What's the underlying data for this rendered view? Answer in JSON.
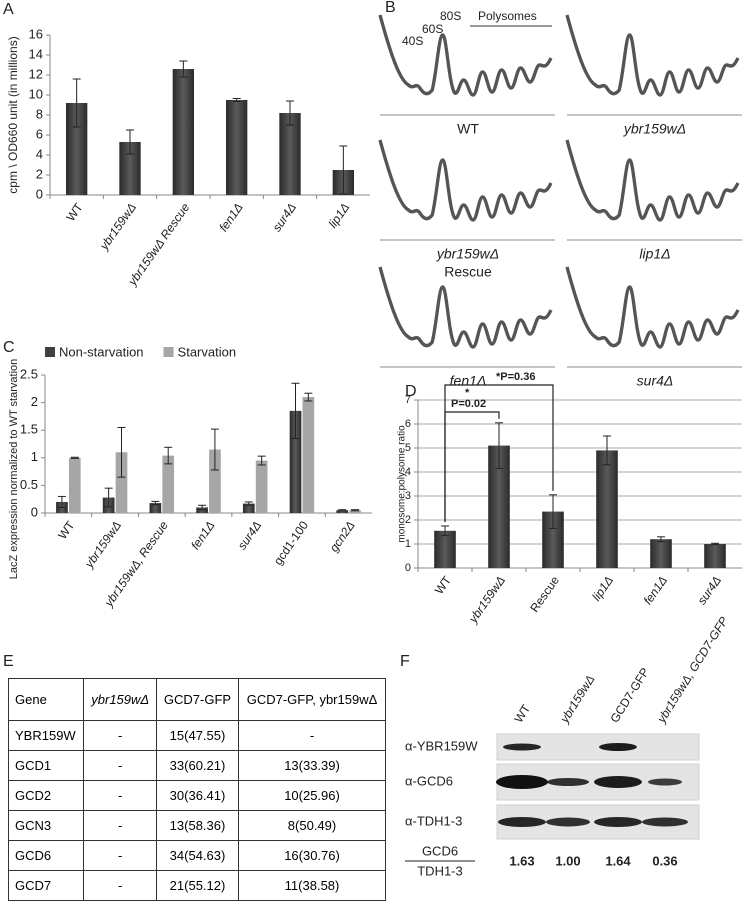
{
  "panel_labels": [
    "A",
    "B",
    "C",
    "D",
    "E",
    "F"
  ],
  "chart_data": [
    {
      "type": "bar",
      "ylabel": "cpm \\ OD660 unit (in millions)",
      "categories": [
        "WT",
        "ybr159wΔ",
        "ybr159wΔ Rescue",
        "fen1Δ",
        "sur4Δ",
        "lip1Δ"
      ],
      "values": [
        9.2,
        5.3,
        12.6,
        9.5,
        8.2,
        2.5
      ],
      "errors": [
        2.4,
        1.2,
        0.8,
        0.15,
        1.2,
        2.4
      ],
      "color": "#404040",
      "ylim": [
        0,
        16
      ],
      "yticks": [
        0,
        2,
        4,
        6,
        8,
        10,
        12,
        14,
        16
      ],
      "grid": false
    },
    {
      "type": "bar",
      "ylabel": "LacZ expression normalized to WT starvation",
      "categories": [
        "WT",
        "ybr159wΔ",
        "ybr159wΔ, Rescue",
        "fen1Δ",
        "sur4Δ",
        "gcd1-100",
        "gcn2Δ"
      ],
      "series": [
        {
          "name": "Non-starvation",
          "color": "#404040",
          "values": [
            0.2,
            0.28,
            0.18,
            0.1,
            0.17,
            1.85,
            0.05
          ],
          "errors": [
            0.1,
            0.17,
            0.03,
            0.04,
            0.03,
            0.5,
            0.01
          ]
        },
        {
          "name": "Starvation",
          "color": "#a6a6a6",
          "values": [
            1.0,
            1.1,
            1.04,
            1.15,
            0.95,
            2.1,
            0.05
          ],
          "errors": [
            0.01,
            0.45,
            0.15,
            0.37,
            0.08,
            0.07,
            0.01
          ]
        }
      ],
      "ylim": [
        0,
        2.5
      ],
      "yticks": [
        0,
        0.5,
        1,
        1.5,
        2,
        2.5
      ],
      "grid": false,
      "legend": "top"
    },
    {
      "type": "bar",
      "ylabel": "monosome:polysome ratio",
      "categories": [
        "WT",
        "ybr159wΔ",
        "Rescue",
        "lip1Δ",
        "fen1Δ",
        "sur4Δ"
      ],
      "values": [
        1.55,
        5.1,
        2.35,
        4.9,
        1.2,
        1.0
      ],
      "errors": [
        0.2,
        0.95,
        0.7,
        0.6,
        0.1,
        0.03
      ],
      "color": "#404040",
      "ylim": [
        0,
        7
      ],
      "yticks": [
        0,
        1,
        2,
        3,
        4,
        5,
        6,
        7
      ],
      "grid": true,
      "annotations": [
        "*P=0.36",
        "*",
        "P=0.02"
      ]
    }
  ],
  "polysome": {
    "peaks": [
      "40S",
      "60S",
      "80S",
      "Polysomes"
    ],
    "profiles": [
      {
        "label": "WT"
      },
      {
        "label": "ybr159wΔ"
      },
      {
        "label": "ybr159wΔ",
        "sublabel": "Rescue"
      },
      {
        "label": "lip1Δ"
      },
      {
        "label": "fen1Δ"
      },
      {
        "label": "sur4Δ"
      }
    ]
  },
  "table": {
    "header": [
      "Gene",
      "ybr159wΔ",
      "GCD7-GFP",
      "GCD7-GFP, ybr159wΔ"
    ],
    "rows": [
      [
        "YBR159W",
        "-",
        "15(47.55)",
        "-"
      ],
      [
        "GCD1",
        "-",
        "33(60.21)",
        "13(33.39)"
      ],
      [
        "GCD2",
        "-",
        "30(36.41)",
        "10(25.96)"
      ],
      [
        "GCN3",
        "-",
        "13(58.36)",
        "8(50.49)"
      ],
      [
        "GCD6",
        "-",
        "34(54.63)",
        "16(30.76)"
      ],
      [
        "GCD7",
        "-",
        "21(55.12)",
        "11(38.58)"
      ]
    ]
  },
  "blot": {
    "lanes": [
      "WT",
      "ybr159wΔ",
      "GCD7-GFP",
      "ybr159wΔ, GCD7-GFP"
    ],
    "rows": [
      "α-YBR159W",
      "α-GCD6",
      "α-TDH1-3"
    ],
    "ratio_numerator": "GCD6",
    "ratio_denominator": "TDH1-3",
    "ratios": [
      "1.63",
      "1.00",
      "1.64",
      "0.36"
    ]
  }
}
